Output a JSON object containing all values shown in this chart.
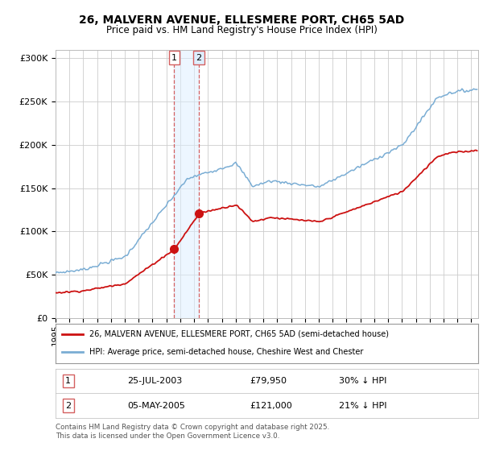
{
  "title_line1": "26, MALVERN AVENUE, ELLESMERE PORT, CH65 5AD",
  "title_line2": "Price paid vs. HM Land Registry's House Price Index (HPI)",
  "ylim": [
    0,
    310000
  ],
  "yticks": [
    0,
    50000,
    100000,
    150000,
    200000,
    250000,
    300000
  ],
  "ytick_labels": [
    "£0",
    "£50K",
    "£100K",
    "£150K",
    "£200K",
    "£250K",
    "£300K"
  ],
  "hpi_color": "#7aadd4",
  "price_color": "#cc1111",
  "vline_color": "#d46060",
  "shade_color": "#ddeeff",
  "purchase1_year": 2003.56,
  "purchase1_price": 79950,
  "purchase1_hpi_pct": "30% ↓ HPI",
  "purchase1_date": "25-JUL-2003",
  "purchase2_year": 2005.34,
  "purchase2_price": 121000,
  "purchase2_hpi_pct": "21% ↓ HPI",
  "purchase2_date": "05-MAY-2005",
  "legend_label1": "26, MALVERN AVENUE, ELLESMERE PORT, CH65 5AD (semi-detached house)",
  "legend_label2": "HPI: Average price, semi-detached house, Cheshire West and Chester",
  "footer": "Contains HM Land Registry data © Crown copyright and database right 2025.\nThis data is licensed under the Open Government Licence v3.0.",
  "xlim_start": 1995,
  "xlim_end": 2025.5
}
